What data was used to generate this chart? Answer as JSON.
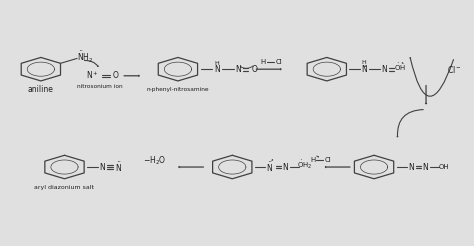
{
  "bg_color": "#e0e0e0",
  "line_color": "#404040",
  "text_color": "#202020",
  "figsize": [
    4.74,
    2.46
  ],
  "dpi": 100,
  "labels": {
    "aniline": "aniline",
    "nitrosonium_ion": "nitrosonium ion",
    "n_phenyl_nitrosamine": "n-phenyl-nitrosamine",
    "aryl_diazonium_salt": "aryl diazonium salt"
  }
}
